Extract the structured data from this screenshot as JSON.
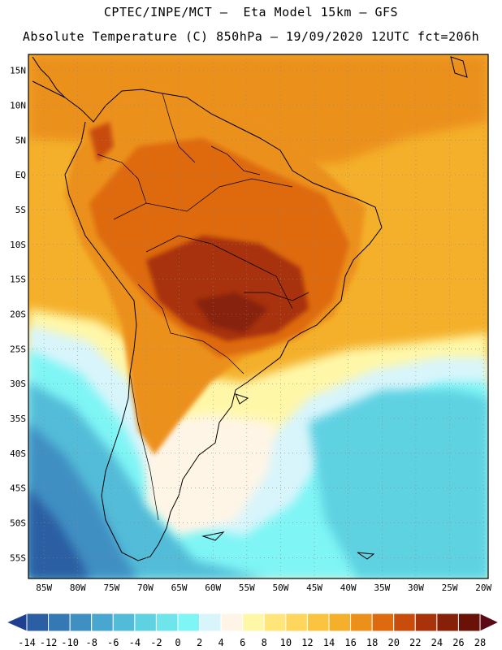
{
  "header": {
    "line1": "CPTEC/INPE/MCT —  Eta Model 15km — GFS",
    "line2": "Absolute Temperature (C) 850hPa — 19/09/2020 12UTC fct=206h"
  },
  "axes": {
    "lat_labels": [
      "15N",
      "10N",
      "5N",
      "EQ",
      "5S",
      "10S",
      "15S",
      "20S",
      "25S",
      "30S",
      "35S",
      "40S",
      "45S",
      "50S",
      "55S"
    ],
    "lat_values": [
      15,
      10,
      5,
      0,
      -5,
      -10,
      -15,
      -20,
      -25,
      -30,
      -35,
      -40,
      -45,
      -50,
      -55
    ],
    "lon_labels": [
      "85W",
      "80W",
      "75W",
      "70W",
      "65W",
      "60W",
      "55W",
      "50W",
      "45W",
      "40W",
      "35W",
      "30W",
      "25W",
      "20W"
    ],
    "lon_values": [
      -85,
      -80,
      -75,
      -70,
      -65,
      -60,
      -55,
      -50,
      -45,
      -40,
      -35,
      -30,
      -25,
      -20
    ]
  },
  "colorbar": {
    "labels": [
      "-14",
      "-12",
      "-10",
      "-8",
      "-6",
      "-4",
      "-2",
      "0",
      "2",
      "4",
      "6",
      "8",
      "10",
      "12",
      "14",
      "16",
      "18",
      "20",
      "22",
      "24",
      "26",
      "28"
    ],
    "colors": [
      "#1f3f8f",
      "#2b5ea3",
      "#3579b4",
      "#3f8fc3",
      "#49a6cf",
      "#52bcd8",
      "#5fd2e2",
      "#6fe4ea",
      "#7ff5f5",
      "#d8f5fb",
      "#fff5e6",
      "#fff7a8",
      "#ffe57a",
      "#fed65e",
      "#fbc440",
      "#f4b02a",
      "#ec901c",
      "#de6a10",
      "#c84c0c",
      "#a8320a",
      "#862008",
      "#6a1208",
      "#5a0a14"
    ]
  },
  "field": {
    "ocean_south_color": "#5fd2e2",
    "ocean_north_color": "#f4b02a",
    "land_hot_color": "#c84c0c",
    "land_core_color": "#a8320a",
    "land_warm_color": "#ec901c",
    "patagonia_color": "#fff5e6",
    "southwest_color": "#2b5ea3"
  }
}
